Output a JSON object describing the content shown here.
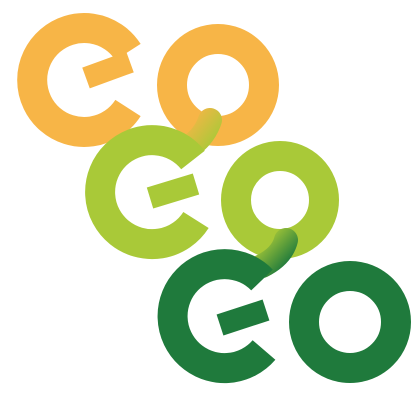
{
  "logo": {
    "rows": [
      {
        "text": "GO",
        "color": "#F7B547"
      },
      {
        "text": "GO",
        "color": "#A9C938"
      },
      {
        "text": "GO",
        "color": "#1F7A3C"
      }
    ],
    "colors": {
      "background": "#FFFFFF",
      "orange": "#F7B547",
      "lime": "#A9C938",
      "green": "#1F7A3C"
    }
  }
}
